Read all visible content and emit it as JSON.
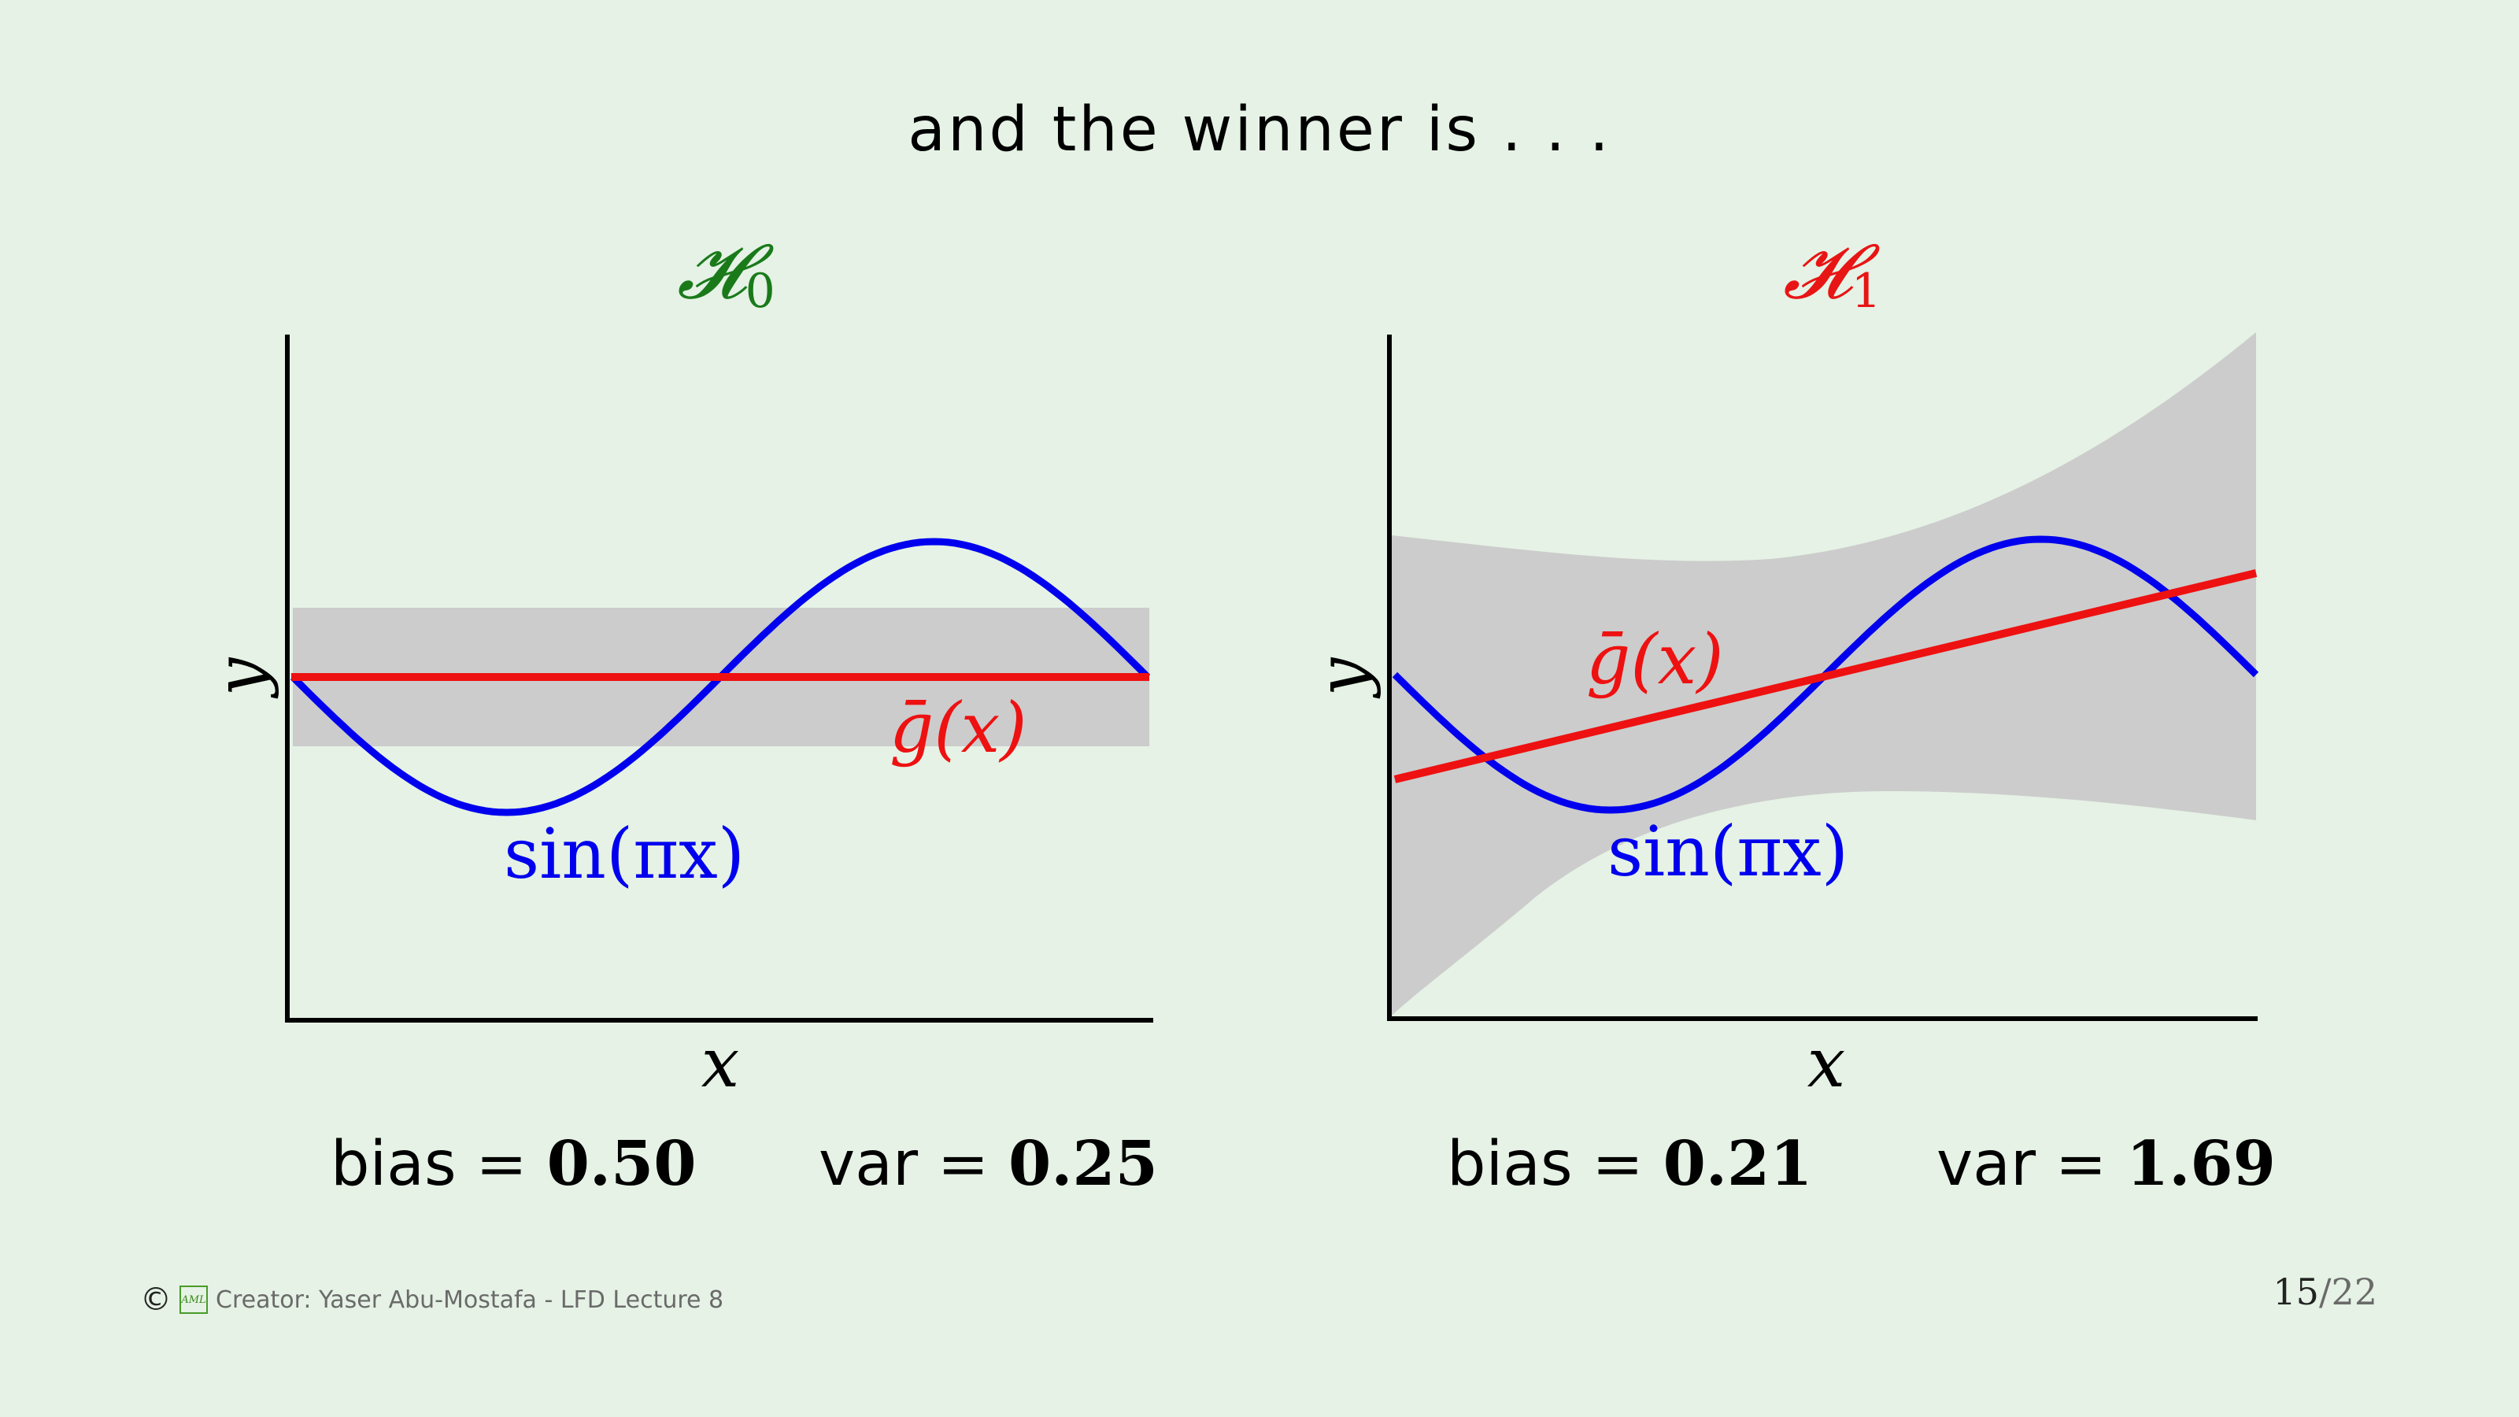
{
  "slide": {
    "title": "and the winner is . . ."
  },
  "panels": [
    {
      "hypothesis": "𝓗",
      "subscript": "0",
      "hyp_color": "#1a7a1a",
      "y_label": "y",
      "x_label": "x",
      "curve_label": "sin(πx)",
      "gbar_label": "ḡ(x)",
      "bias_text": "bias",
      "bias_value": "0.50",
      "var_text": "var",
      "var_value": "0.25"
    },
    {
      "hypothesis": "𝓗",
      "subscript": "1",
      "hyp_color": "#e81515",
      "y_label": "y",
      "x_label": "x",
      "curve_label": "sin(πx)",
      "gbar_label": "ḡ(x)",
      "bias_text": "bias",
      "bias_value": "0.21",
      "var_text": "var",
      "var_value": "1.69"
    }
  ],
  "colors": {
    "target": "#0000ee",
    "gbar": "#ee1111",
    "band": "#cccccc",
    "axis": "#000000"
  },
  "footer": {
    "copyright": "©",
    "logo": "AML",
    "creator": "Creator: Yaser Abu-Mostafa - LFD Lecture 8",
    "page_current": "15",
    "page_sep": "/",
    "page_total": "22"
  }
}
